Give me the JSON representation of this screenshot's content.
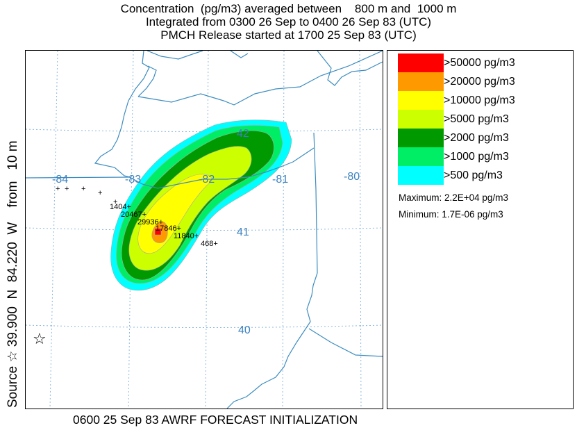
{
  "title": {
    "line1": "Concentration  (pg/m3) averaged between    800 m and  1000 m",
    "line2": "Integrated from 0300 26 Sep to 0400 26 Sep 83 (UTC)",
    "line3": "PMCH Release started at 1700 25 Sep 83 (UTC)"
  },
  "source_label": "Source ☆ 39.900  N  84.220  W    from   10 m",
  "footer": "0600 25 Sep 83 AWRF FORECAST INITIALIZATION",
  "legend": {
    "items": [
      {
        "label": ">50000 pg/m3",
        "color": "#ff0000"
      },
      {
        "label": ">20000 pg/m3",
        "color": "#ff9900"
      },
      {
        "label": ">10000 pg/m3",
        "color": "#ffff00"
      },
      {
        "label": ">5000 pg/m3",
        "color": "#ccff00"
      },
      {
        "label": ">2000 pg/m3",
        "color": "#009900"
      },
      {
        "label": ">1000 pg/m3",
        "color": "#00ee66"
      },
      {
        "label": ">500 pg/m3",
        "color": "#00ffff"
      }
    ],
    "maximum": "Maximum: 2.2E+04 pg/m3",
    "minimum": "Minimum: 1.7E-06 pg/m3"
  },
  "map": {
    "longitude_labels": [
      "-84",
      "-83",
      "-82",
      "-81",
      "-80"
    ],
    "latitude_labels": [
      "42",
      "41",
      "40"
    ],
    "measurement_values": [
      "1404+",
      "20467+",
      "29936+",
      "17846+",
      "11840+",
      "468+"
    ],
    "background_markers": [
      "+",
      "+",
      "+",
      "+",
      "+"
    ],
    "source_symbol": "☆",
    "colors": {
      "grid": "#8bb8dd",
      "borders": "#3c8cc0",
      "labels": "#3c82c0"
    }
  }
}
